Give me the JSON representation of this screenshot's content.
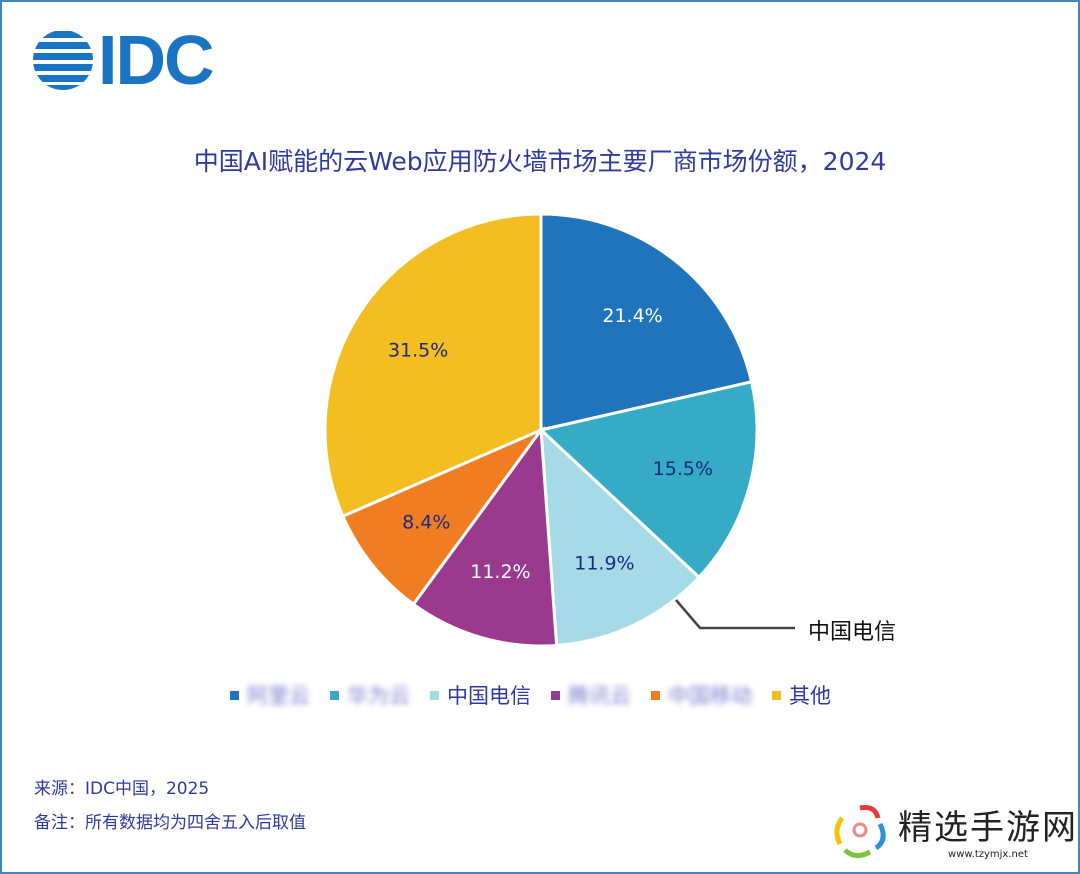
{
  "logo": "IDC",
  "chart_data": {
    "type": "pie",
    "title": "中国AI赋能的云Web应用防火墙市场主要厂商市场份额，2024",
    "categories": [
      "阿里云",
      "华为云",
      "中国电信",
      "腾讯云",
      "中国移动",
      "其他"
    ],
    "values": [
      21.4,
      15.5,
      11.9,
      11.2,
      8.4,
      31.5
    ],
    "labels": [
      "21.4%",
      "15.5%",
      "11.9%",
      "11.2%",
      "8.4%",
      "31.5%"
    ],
    "colors": [
      "#1f74bb",
      "#35abc6",
      "#a5dae6",
      "#9a3a8e",
      "#f07d22",
      "#f2be21"
    ],
    "label_colors": [
      "#ffffff",
      "#1c2a80",
      "#1c2a80",
      "#ffffff",
      "#1c2a80",
      "#1c2a80"
    ],
    "blurred_legend": [
      true,
      true,
      false,
      true,
      true,
      false
    ],
    "callout": "中国电信",
    "legend_position": "bottom"
  },
  "notes": {
    "source": "来源：IDC中国，2025",
    "remark": "备注：所有数据均为四舍五入后取值"
  },
  "watermark": {
    "name": "精选手游网",
    "url": "www.tzymjx.net"
  }
}
